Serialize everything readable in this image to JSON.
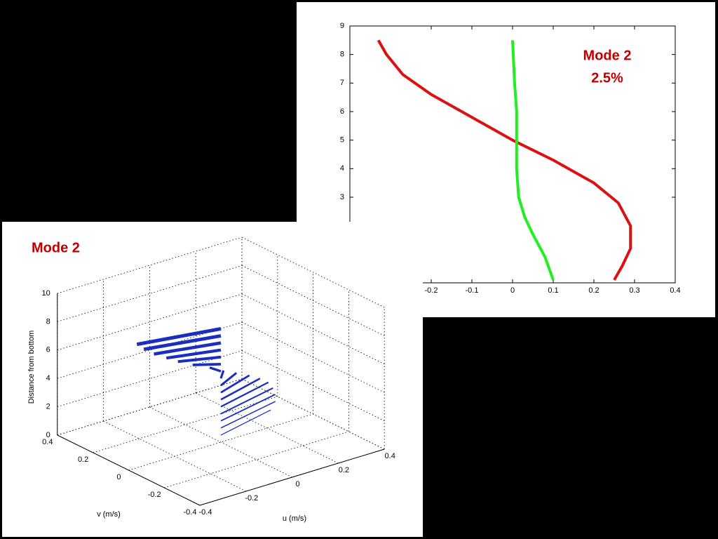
{
  "chart_data": [
    {
      "type": "line",
      "annotations": [
        "Mode 2",
        "2.5%"
      ],
      "xlim": [
        -0.4,
        0.4
      ],
      "xticks": [
        -0.2,
        -0.1,
        0,
        0.1,
        0.2,
        0.3,
        0.4
      ],
      "ylim": [
        0,
        9
      ],
      "yticks": [
        3,
        4,
        5,
        6,
        7,
        8,
        9
      ],
      "series": [
        {
          "color": "#dd1111",
          "x": [
            -0.33,
            -0.31,
            -0.27,
            -0.2,
            -0.1,
            0.0,
            0.1,
            0.2,
            0.26,
            0.29,
            0.29,
            0.27,
            0.25
          ],
          "values": [
            8.5,
            8.0,
            7.3,
            6.6,
            5.8,
            5.0,
            4.3,
            3.5,
            2.8,
            2.0,
            1.2,
            0.6,
            0.1
          ]
        },
        {
          "color": "#22ee22",
          "x": [
            0.0,
            0.005,
            0.01,
            0.01,
            0.01,
            0.015,
            0.03,
            0.05,
            0.08,
            0.1
          ],
          "values": [
            8.5,
            7.0,
            6.0,
            5.0,
            4.0,
            3.0,
            2.3,
            1.7,
            0.9,
            0.1
          ]
        }
      ]
    },
    {
      "type": "quiver3d",
      "annotation": "Mode 2",
      "xlabel": "u (m/s)",
      "ylabel": "v (m/s)",
      "zlabel": "Distance from bottom",
      "xlim": [
        -0.4,
        0.4
      ],
      "xticks": [
        -0.4,
        -0.2,
        0,
        0.2,
        0.4
      ],
      "ylim": [
        -0.4,
        0.4
      ],
      "yticks": [
        -0.4,
        -0.2,
        0,
        0.2,
        0.4
      ],
      "zlim": [
        0,
        10
      ],
      "zticks": [
        0,
        2,
        4,
        6,
        8,
        10
      ],
      "color": "#1a2ec0",
      "z": [
        8.0,
        7.5,
        7.0,
        6.5,
        6.0,
        5.5,
        5.0,
        4.5,
        4.0,
        3.5,
        3.0,
        2.5,
        2.0,
        1.5,
        1.0,
        0.5
      ],
      "u": [
        -0.31,
        -0.28,
        -0.24,
        -0.19,
        -0.14,
        -0.08,
        -0.01,
        0.05,
        0.11,
        0.17,
        0.22,
        0.26,
        0.28,
        0.29,
        0.29,
        0.27
      ],
      "v": [
        0.07,
        0.07,
        0.065,
        0.06,
        0.06,
        0.055,
        0.05,
        0.05,
        0.055,
        0.06,
        0.065,
        0.07,
        0.07,
        0.07,
        0.07,
        0.07
      ]
    }
  ]
}
